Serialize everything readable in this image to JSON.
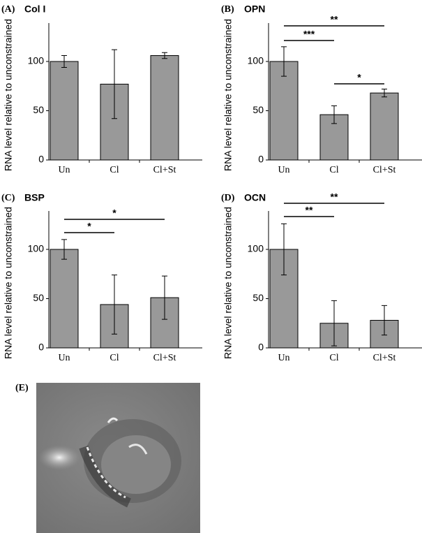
{
  "chart_data": [
    {
      "type": "bar",
      "panel": "(A)",
      "title": "Col I",
      "y_label": "RNA level relative to unconstrained",
      "categories": [
        "Un",
        "Cl",
        "Cl+St"
      ],
      "values": [
        100,
        77,
        106
      ],
      "errors": [
        6,
        35,
        3
      ],
      "color": "#999999",
      "ylim": [
        0,
        139
      ],
      "yticks": [
        0,
        50,
        100
      ],
      "comparisons": []
    },
    {
      "type": "bar",
      "panel": "(B)",
      "title": "OPN",
      "y_label": "RNA level relative to unconstrained",
      "categories": [
        "Un",
        "Cl",
        "Cl+St"
      ],
      "values": [
        100,
        46,
        68
      ],
      "errors": [
        15,
        9,
        4
      ],
      "color": "#999999",
      "ylim": [
        0,
        139
      ],
      "yticks": [
        0,
        50,
        100
      ],
      "comparisons": [
        {
          "label": "*",
          "pair": [
            "Cl",
            "Cl+St"
          ]
        },
        {
          "label": "***",
          "pair": [
            "Un",
            "Cl"
          ]
        },
        {
          "label": "**",
          "pair": [
            "Un",
            "Cl+St"
          ]
        }
      ]
    },
    {
      "type": "bar",
      "panel": "(C)",
      "title": "BSP",
      "y_label": "RNA level relative to unconstrained",
      "categories": [
        "Un",
        "Cl",
        "Cl+St"
      ],
      "values": [
        100,
        44,
        51
      ],
      "errors": [
        10,
        30,
        22
      ],
      "color": "#999999",
      "ylim": [
        0,
        139
      ],
      "yticks": [
        0,
        50,
        100
      ],
      "comparisons": [
        {
          "label": "*",
          "pair": [
            "Un",
            "Cl"
          ]
        },
        {
          "label": "*",
          "pair": [
            "Un",
            "Cl+St"
          ]
        }
      ]
    },
    {
      "type": "bar",
      "panel": "(D)",
      "title": "OCN",
      "y_label": "RNA level relative to unconstrained",
      "categories": [
        "Un",
        "Cl",
        "Cl+St"
      ],
      "values": [
        100,
        25,
        28
      ],
      "errors": [
        26,
        23,
        15
      ],
      "color": "#999999",
      "ylim": [
        0,
        139
      ],
      "yticks": [
        0,
        50,
        100
      ],
      "comparisons": [
        {
          "label": "**",
          "pair": [
            "Un",
            "Cl"
          ]
        },
        {
          "label": "**",
          "pair": [
            "Un",
            "Cl+St"
          ]
        }
      ]
    }
  ],
  "image_panel": {
    "label": "(E)"
  }
}
